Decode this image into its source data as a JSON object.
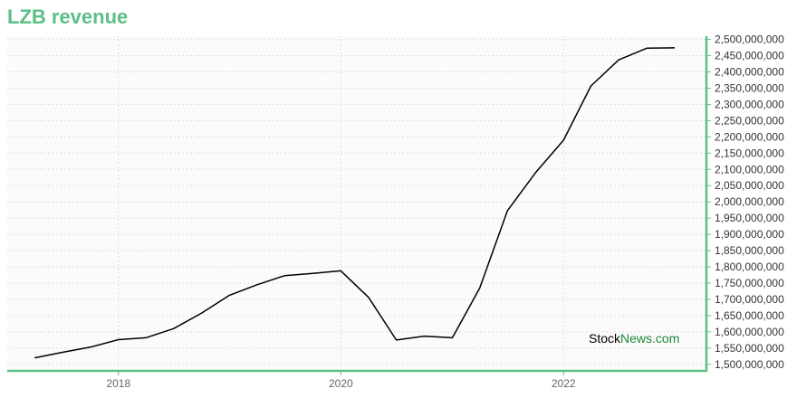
{
  "title": "LZB revenue",
  "watermark": {
    "part1": "Stock",
    "part2": "News",
    "part3": ".com"
  },
  "colors": {
    "title": "#5bbf86",
    "axis": "#5bbf86",
    "grid": "#bfe3cf",
    "line": "#000000",
    "plot_bg": "#fcfafa",
    "watermark_accent": "#1a8a3a"
  },
  "chart_data": {
    "type": "line",
    "title": "LZB revenue",
    "xlabel": "",
    "ylabel": "",
    "x_ticks": [
      "2018",
      "2020",
      "2022"
    ],
    "x_range": [
      "2017-01-01",
      "2023-04-15"
    ],
    "ylim": [
      1480000000,
      2510000000
    ],
    "y_ticks": [
      1500000000,
      1550000000,
      1600000000,
      1650000000,
      1700000000,
      1750000000,
      1800000000,
      1850000000,
      1900000000,
      1950000000,
      2000000000,
      2050000000,
      2100000000,
      2150000000,
      2200000000,
      2250000000,
      2300000000,
      2350000000,
      2400000000,
      2450000000,
      2500000000
    ],
    "y_tick_labels": [
      "1,500,000,000",
      "1,550,000,000",
      "1,600,000,000",
      "1,650,000,000",
      "1,700,000,000",
      "1,750,000,000",
      "1,800,000,000",
      "1,850,000,000",
      "1,900,000,000",
      "1,950,000,000",
      "2,000,000,000",
      "2,050,000,000",
      "2,100,000,000",
      "2,150,000,000",
      "2,200,000,000",
      "2,250,000,000",
      "2,300,000,000",
      "2,350,000,000",
      "2,400,000,000",
      "2,450,000,000",
      "2,500,000,000"
    ],
    "grid": true,
    "series": [
      {
        "x": [
          "2017-04-01",
          "2017-07-01",
          "2017-10-01",
          "2018-01-01",
          "2018-04-01",
          "2018-07-01",
          "2018-10-01",
          "2019-01-01",
          "2019-04-01",
          "2019-07-01",
          "2019-10-01",
          "2020-01-01",
          "2020-04-01",
          "2020-07-01",
          "2020-10-01",
          "2021-01-01",
          "2021-04-01",
          "2021-07-01",
          "2021-10-01",
          "2022-01-01",
          "2022-04-01",
          "2022-07-01",
          "2022-10-01",
          "2023-01-01"
        ],
        "values": [
          1520000000,
          1537000000,
          1553000000,
          1576000000,
          1582000000,
          1610000000,
          1658000000,
          1713000000,
          1745000000,
          1773000000,
          1780000000,
          1788000000,
          1706000000,
          1575000000,
          1587000000,
          1582000000,
          1735000000,
          1973000000,
          2090000000,
          2190000000,
          2357000000,
          2437000000,
          2473000000,
          2474000000
        ]
      }
    ]
  }
}
